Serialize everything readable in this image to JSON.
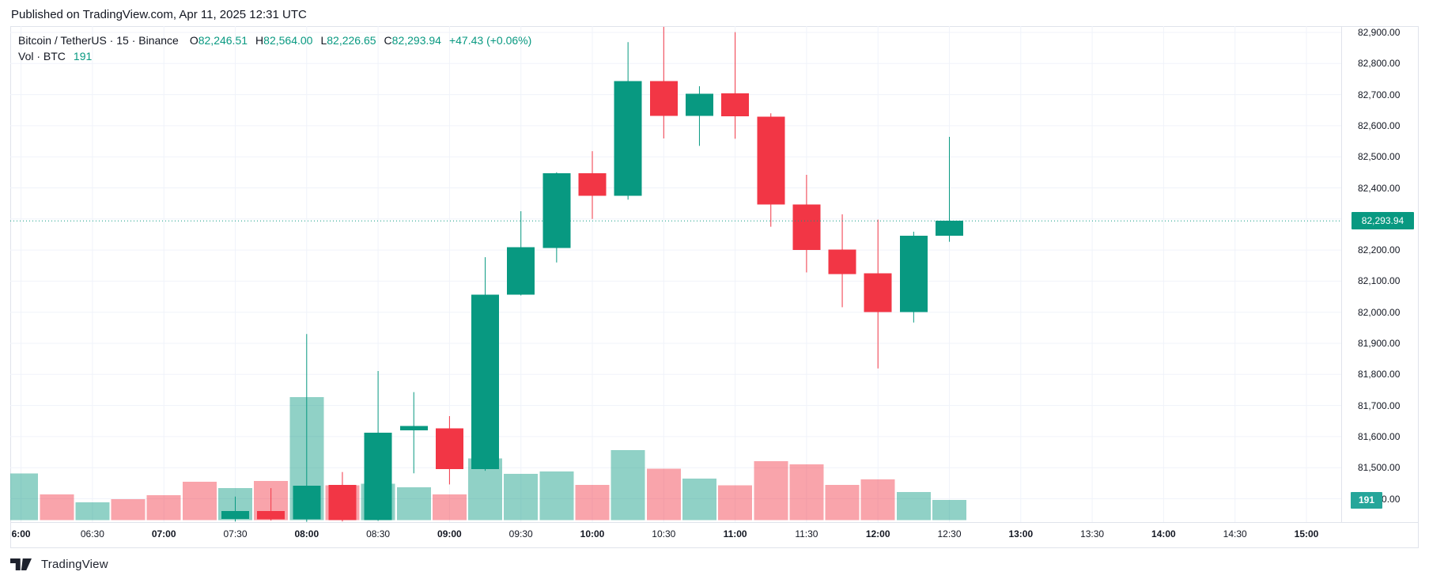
{
  "page": {
    "published_line": "Published on TradingView.com, Apr 11, 2025 12:31 UTC",
    "brand": "TradingView"
  },
  "legend": {
    "symbol_line": "Bitcoin / TetherUS · 15 · Binance",
    "o_label": "O",
    "o_value": "82,246.51",
    "h_label": "H",
    "h_value": "82,564.00",
    "l_label": "L",
    "l_value": "82,226.65",
    "c_label": "C",
    "c_value": "82,293.94",
    "change": "+47.43 (+0.06%)",
    "vol_label": "Vol · BTC",
    "vol_value": "191"
  },
  "badges": {
    "price": "82,293.94",
    "volume": "191"
  },
  "colors": {
    "up": "#089981",
    "down": "#F23645",
    "vol_up": "rgba(8,153,129,0.45)",
    "vol_down": "rgba(242,54,69,0.45)",
    "grid": "#F0F3FA",
    "border": "#E0E3EB",
    "text": "#131722",
    "price_badge_bg": "#089981",
    "vol_badge_bg": "#26A69A",
    "dotted_line": "#089981"
  },
  "chart_data": {
    "type": "candlestick",
    "title": "Bitcoin / TetherUS · 15 · Binance",
    "symbol": "Bitcoin / TetherUS",
    "interval": "15",
    "exchange": "Binance",
    "legend_position": "top-left",
    "grid": true,
    "current_price": 82293.94,
    "current_volume": 191,
    "last_candle": {
      "open": 82246.51,
      "high": 82564.0,
      "low": 82226.65,
      "close": 82293.94,
      "change_text": "+47.43 (+0.06%)"
    },
    "price_axis": {
      "side": "right",
      "visible_range": [
        81326,
        82920
      ],
      "ticks": [
        {
          "v": 82900,
          "label": "82,900.00"
        },
        {
          "v": 82800,
          "label": "82,800.00"
        },
        {
          "v": 82700,
          "label": "82,700.00"
        },
        {
          "v": 82600,
          "label": "82,600.00"
        },
        {
          "v": 82500,
          "label": "82,500.00"
        },
        {
          "v": 82400,
          "label": "82,400.00"
        },
        {
          "v": 82300,
          "label": "82,300.00"
        },
        {
          "v": 82200,
          "label": "82,200.00"
        },
        {
          "v": 82100,
          "label": "82,100.00"
        },
        {
          "v": 82000,
          "label": "82,000.00"
        },
        {
          "v": 81900,
          "label": "81,900.00"
        },
        {
          "v": 81800,
          "label": "81,800.00"
        },
        {
          "v": 81700,
          "label": "81,700.00"
        },
        {
          "v": 81600,
          "label": "81,600.00"
        },
        {
          "v": 81500,
          "label": "81,500.00"
        },
        {
          "v": 81400,
          "label": "81,400.00"
        }
      ]
    },
    "time_axis": {
      "labels": [
        {
          "t": "6:00",
          "bold": true
        },
        {
          "t": "06:30",
          "bold": false
        },
        {
          "t": "07:00",
          "bold": true
        },
        {
          "t": "07:30",
          "bold": false
        },
        {
          "t": "08:00",
          "bold": true
        },
        {
          "t": "08:30",
          "bold": false
        },
        {
          "t": "09:00",
          "bold": true
        },
        {
          "t": "09:30",
          "bold": false
        },
        {
          "t": "10:00",
          "bold": true
        },
        {
          "t": "10:30",
          "bold": false
        },
        {
          "t": "11:00",
          "bold": true
        },
        {
          "t": "11:30",
          "bold": false
        },
        {
          "t": "12:00",
          "bold": true
        },
        {
          "t": "12:30",
          "bold": false
        },
        {
          "t": "13:00",
          "bold": true
        },
        {
          "t": "13:30",
          "bold": false
        },
        {
          "t": "14:00",
          "bold": true
        },
        {
          "t": "14:30",
          "bold": false
        },
        {
          "t": "15:00",
          "bold": true
        }
      ]
    },
    "candles": [
      {
        "time": "07:30",
        "open": 81335,
        "high": 81407,
        "low": 81327,
        "close": 81361
      },
      {
        "time": "07:45",
        "open": 81361,
        "high": 81434,
        "low": 81330,
        "close": 81334
      },
      {
        "time": "08:00",
        "open": 81334,
        "high": 81930,
        "low": 81326,
        "close": 81442
      },
      {
        "time": "08:15",
        "open": 81445,
        "high": 81486,
        "low": 81327,
        "close": 81331
      },
      {
        "time": "08:30",
        "open": 81331,
        "high": 81811,
        "low": 81329,
        "close": 81613
      },
      {
        "time": "08:45",
        "open": 81620,
        "high": 81743,
        "low": 81482,
        "close": 81634
      },
      {
        "time": "09:00",
        "open": 81626,
        "high": 81666,
        "low": 81446,
        "close": 81495
      },
      {
        "time": "09:15",
        "open": 81495,
        "high": 82177,
        "low": 81490,
        "close": 82057
      },
      {
        "time": "09:30",
        "open": 82057,
        "high": 82325,
        "low": 82054,
        "close": 82209
      },
      {
        "time": "09:45",
        "open": 82206,
        "high": 82450,
        "low": 82160,
        "close": 82447
      },
      {
        "time": "10:00",
        "open": 82447,
        "high": 82518,
        "low": 82300,
        "close": 82374
      },
      {
        "time": "10:15",
        "open": 82374,
        "high": 82869,
        "low": 82362,
        "close": 82743
      },
      {
        "time": "10:30",
        "open": 82743,
        "high": 82918,
        "low": 82559,
        "close": 82631
      },
      {
        "time": "10:45",
        "open": 82631,
        "high": 82727,
        "low": 82535,
        "close": 82703
      },
      {
        "time": "11:00",
        "open": 82704,
        "high": 82901,
        "low": 82558,
        "close": 82630
      },
      {
        "time": "11:15",
        "open": 82629,
        "high": 82640,
        "low": 82275,
        "close": 82346
      },
      {
        "time": "11:30",
        "open": 82346,
        "high": 82442,
        "low": 82128,
        "close": 82200
      },
      {
        "time": "11:45",
        "open": 82202,
        "high": 82315,
        "low": 82016,
        "close": 82122
      },
      {
        "time": "12:00",
        "open": 82125,
        "high": 82298,
        "low": 81819,
        "close": 82001
      },
      {
        "time": "12:15",
        "open": 82000,
        "high": 82259,
        "low": 81967,
        "close": 82246
      },
      {
        "time": "12:30",
        "open": 82246.51,
        "high": 82564,
        "low": 82226.65,
        "close": 82293.94
      }
    ],
    "volume": [
      {
        "time": "06:00",
        "value": 442,
        "up": true
      },
      {
        "time": "06:15",
        "value": 241,
        "up": false
      },
      {
        "time": "06:30",
        "value": 166,
        "up": true
      },
      {
        "time": "06:45",
        "value": 198,
        "up": false
      },
      {
        "time": "07:00",
        "value": 236,
        "up": false
      },
      {
        "time": "07:15",
        "value": 360,
        "up": false
      },
      {
        "time": "07:30",
        "value": 303,
        "up": true
      },
      {
        "time": "07:45",
        "value": 368,
        "up": false
      },
      {
        "time": "08:00",
        "value": 1161,
        "up": true
      },
      {
        "time": "08:15",
        "value": 328,
        "up": false
      },
      {
        "time": "08:30",
        "value": 345,
        "up": true
      },
      {
        "time": "08:45",
        "value": 308,
        "up": true
      },
      {
        "time": "09:00",
        "value": 241,
        "up": false
      },
      {
        "time": "09:15",
        "value": 582,
        "up": true
      },
      {
        "time": "09:30",
        "value": 435,
        "up": true
      },
      {
        "time": "09:45",
        "value": 457,
        "up": true
      },
      {
        "time": "10:00",
        "value": 333,
        "up": false
      },
      {
        "time": "10:15",
        "value": 659,
        "up": true
      },
      {
        "time": "10:30",
        "value": 485,
        "up": false
      },
      {
        "time": "10:45",
        "value": 390,
        "up": true
      },
      {
        "time": "11:00",
        "value": 328,
        "up": false
      },
      {
        "time": "11:15",
        "value": 557,
        "up": false
      },
      {
        "time": "11:30",
        "value": 525,
        "up": false
      },
      {
        "time": "11:45",
        "value": 333,
        "up": false
      },
      {
        "time": "12:00",
        "value": 383,
        "up": false
      },
      {
        "time": "12:15",
        "value": 263,
        "up": true
      },
      {
        "time": "12:30",
        "value": 191,
        "up": true
      }
    ]
  }
}
